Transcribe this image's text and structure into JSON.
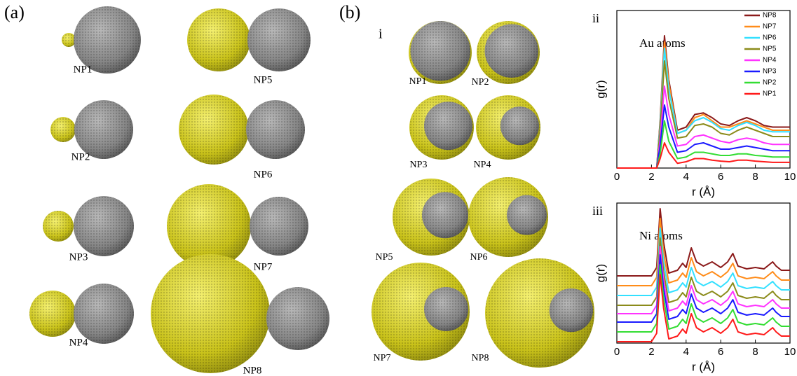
{
  "panels": {
    "a": {
      "label": "(a)",
      "particles": [
        "NP1",
        "NP5",
        "NP2",
        "NP6",
        "NP3",
        "NP7",
        "NP4",
        "NP8"
      ]
    },
    "b": {
      "label": "(b)",
      "sub": "i",
      "particles": [
        "NP1",
        "NP2",
        "NP3",
        "NP4",
        "NP5",
        "NP6",
        "NP7",
        "NP8"
      ]
    }
  },
  "chart_data": [
    {
      "type": "line",
      "panel_label": "ii",
      "annotation": "Au atoms",
      "x_label": "r (Å)",
      "y_label": "g(r)",
      "xlim": [
        0,
        10
      ],
      "xticks": [
        0,
        2,
        4,
        6,
        8,
        10
      ],
      "ylim": [
        0,
        5
      ],
      "legend": "top-right",
      "x": [
        0,
        2.3,
        2.5,
        2.75,
        3.0,
        3.5,
        4.0,
        4.5,
        5.0,
        5.5,
        6.0,
        6.5,
        7.0,
        7.5,
        8.0,
        8.5,
        9,
        9.5,
        10
      ],
      "series": [
        {
          "name": "NP8",
          "color": "#8b1a1a",
          "values": [
            0,
            0,
            1.5,
            4.2,
            2.8,
            1.2,
            1.3,
            1.7,
            1.75,
            1.6,
            1.4,
            1.35,
            1.5,
            1.6,
            1.5,
            1.35,
            1.3,
            1.3,
            1.3
          ]
        },
        {
          "name": "NP7",
          "color": "#ff8c1a",
          "values": [
            0,
            0,
            1.4,
            4.0,
            2.7,
            1.1,
            1.2,
            1.6,
            1.7,
            1.5,
            1.3,
            1.3,
            1.4,
            1.5,
            1.4,
            1.3,
            1.2,
            1.2,
            1.2
          ]
        },
        {
          "name": "NP6",
          "color": "#33e0ff",
          "values": [
            0,
            0,
            1.35,
            3.8,
            2.5,
            1.1,
            1.2,
            1.5,
            1.6,
            1.45,
            1.25,
            1.2,
            1.35,
            1.45,
            1.35,
            1.2,
            1.15,
            1.15,
            1.15
          ]
        },
        {
          "name": "NP5",
          "color": "#8b8b1a",
          "values": [
            0,
            0,
            1.2,
            3.4,
            2.2,
            0.95,
            1.0,
            1.35,
            1.4,
            1.3,
            1.1,
            1.05,
            1.2,
            1.3,
            1.2,
            1.1,
            1.0,
            1.0,
            1.0
          ]
        },
        {
          "name": "NP4",
          "color": "#ff33ff",
          "values": [
            0,
            0,
            0.9,
            2.6,
            1.7,
            0.7,
            0.75,
            1.0,
            1.05,
            0.95,
            0.85,
            0.8,
            0.9,
            0.95,
            0.9,
            0.8,
            0.75,
            0.75,
            0.75
          ]
        },
        {
          "name": "NP3",
          "color": "#1a1aff",
          "values": [
            0,
            0,
            0.7,
            2.0,
            1.3,
            0.5,
            0.55,
            0.75,
            0.8,
            0.7,
            0.6,
            0.6,
            0.65,
            0.7,
            0.65,
            0.6,
            0.55,
            0.55,
            0.55
          ]
        },
        {
          "name": "NP2",
          "color": "#33dd33",
          "values": [
            0,
            0,
            0.45,
            1.5,
            0.85,
            0.3,
            0.35,
            0.5,
            0.5,
            0.45,
            0.4,
            0.4,
            0.45,
            0.45,
            0.4,
            0.38,
            0.35,
            0.35,
            0.35
          ]
        },
        {
          "name": "NP1",
          "color": "#ff1a1a",
          "values": [
            0,
            0,
            0.3,
            0.8,
            0.5,
            0.15,
            0.2,
            0.3,
            0.3,
            0.25,
            0.22,
            0.2,
            0.25,
            0.25,
            0.22,
            0.2,
            0.18,
            0.18,
            0.18
          ]
        }
      ]
    },
    {
      "type": "line",
      "panel_label": "iii",
      "annotation": "Ni atoms",
      "x_label": "r (Å)",
      "y_label": "g(r)",
      "xlim": [
        0,
        10
      ],
      "xticks": [
        0,
        2,
        4,
        6,
        8,
        10
      ],
      "ylim": [
        0,
        5
      ],
      "x": [
        0,
        2.0,
        2.3,
        2.5,
        2.7,
        3.0,
        3.5,
        3.8,
        4.0,
        4.3,
        4.6,
        5.0,
        5.5,
        6.0,
        6.4,
        6.7,
        7.0,
        7.5,
        8.0,
        8.5,
        9.0,
        9.2,
        9.5,
        10
      ],
      "series": [
        {
          "color": "#8b1a1a",
          "values": [
            2.4,
            2.4,
            2.7,
            4.8,
            3.6,
            2.5,
            2.6,
            2.85,
            2.7,
            3.4,
            2.9,
            2.75,
            2.9,
            2.7,
            2.9,
            3.2,
            2.75,
            2.65,
            2.7,
            2.65,
            2.9,
            2.75,
            2.6,
            2.6
          ]
        },
        {
          "color": "#ff8c1a",
          "values": [
            2.05,
            2.05,
            2.35,
            4.45,
            3.25,
            2.15,
            2.25,
            2.5,
            2.35,
            3.05,
            2.55,
            2.4,
            2.55,
            2.35,
            2.55,
            2.85,
            2.4,
            2.3,
            2.35,
            2.3,
            2.55,
            2.4,
            2.25,
            2.25
          ]
        },
        {
          "color": "#33e0ff",
          "values": [
            1.7,
            1.7,
            2.0,
            4.1,
            2.9,
            1.8,
            1.9,
            2.15,
            2.0,
            2.7,
            2.2,
            2.05,
            2.2,
            2.0,
            2.2,
            2.5,
            2.05,
            1.95,
            2.0,
            1.95,
            2.2,
            2.05,
            1.9,
            1.9
          ]
        },
        {
          "color": "#8b8b1a",
          "values": [
            1.35,
            1.35,
            1.65,
            3.75,
            2.55,
            1.45,
            1.55,
            1.8,
            1.65,
            2.35,
            1.85,
            1.7,
            1.85,
            1.65,
            1.85,
            2.15,
            1.7,
            1.6,
            1.65,
            1.6,
            1.85,
            1.7,
            1.55,
            1.55
          ]
        },
        {
          "color": "#ff33ff",
          "values": [
            1.05,
            1.05,
            1.35,
            3.45,
            2.25,
            1.15,
            1.25,
            1.5,
            1.35,
            2.05,
            1.55,
            1.4,
            1.55,
            1.35,
            1.55,
            1.85,
            1.4,
            1.3,
            1.35,
            1.3,
            1.55,
            1.4,
            1.25,
            1.25
          ]
        },
        {
          "color": "#1a1aff",
          "values": [
            0.75,
            0.75,
            1.05,
            3.15,
            1.95,
            0.85,
            0.95,
            1.2,
            1.05,
            1.75,
            1.25,
            1.1,
            1.25,
            1.05,
            1.25,
            1.55,
            1.1,
            1.0,
            1.05,
            1.0,
            1.25,
            1.1,
            0.95,
            0.95
          ]
        },
        {
          "color": "#33dd33",
          "values": [
            0.4,
            0.4,
            0.7,
            2.8,
            1.6,
            0.5,
            0.6,
            0.85,
            0.7,
            1.4,
            0.9,
            0.75,
            0.9,
            0.7,
            0.9,
            1.2,
            0.75,
            0.65,
            0.7,
            0.65,
            0.9,
            0.75,
            0.6,
            0.6
          ]
        },
        {
          "color": "#ff1a1a",
          "values": [
            0.05,
            0.05,
            0.35,
            2.45,
            1.25,
            0.15,
            0.25,
            0.5,
            0.35,
            1.05,
            0.55,
            0.4,
            0.55,
            0.35,
            0.55,
            0.85,
            0.4,
            0.3,
            0.35,
            0.3,
            0.55,
            0.4,
            0.25,
            0.25
          ]
        }
      ]
    }
  ]
}
